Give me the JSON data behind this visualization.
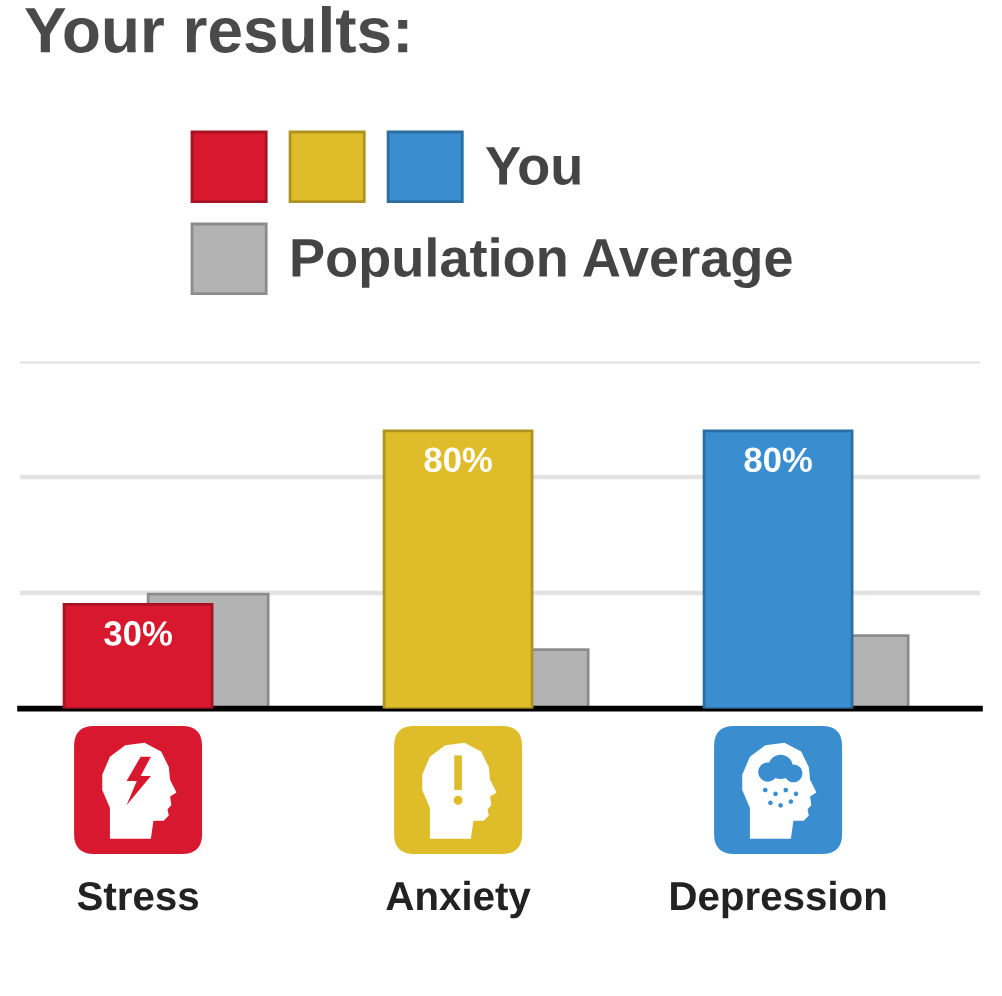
{
  "chart_data": {
    "type": "bar",
    "title": "Your results:",
    "categories": [
      "Stress",
      "Anxiety",
      "Depression"
    ],
    "series": [
      {
        "name": "You",
        "colors": [
          "#d8182e",
          "#dfbd2a",
          "#3a8dcf"
        ],
        "values": [
          30,
          80,
          80
        ],
        "value_labels": [
          "30%",
          "80%",
          "80%"
        ]
      },
      {
        "name": "Population Average",
        "color": "#b3b3b3",
        "values": [
          33,
          17,
          21
        ]
      }
    ],
    "ylim": [
      0,
      100
    ],
    "yticks": [
      {
        "value": 33.3,
        "label": null
      },
      {
        "value": 66.7,
        "label": null
      },
      {
        "value": 100,
        "label": null
      }
    ],
    "grid": "y",
    "legend": "top",
    "tick_labels": "x"
  }
}
